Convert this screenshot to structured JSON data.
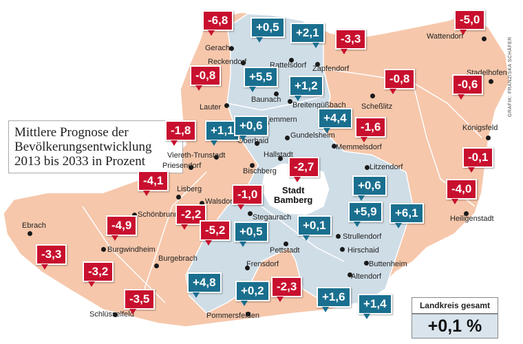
{
  "title_lines": [
    "Mittlere Prognose der",
    "Bevölkerungsentwicklung",
    "2013 bis 2033 in Prozent"
  ],
  "credit": "GRAFIK: FRANZISKA SCHÄFER",
  "city": [
    "Stadt",
    "Bamberg"
  ],
  "total_label": "Landkreis gesamt",
  "total_value": "+0,1 %",
  "colors": {
    "decline_region": "#f6c7ab",
    "growth_region": "#cfdde7",
    "badge_negative": "#c8102e",
    "badge_positive": "#1a6f8f"
  },
  "towns": [
    "Gerach",
    "Reckendorf",
    "Rattelsdorf",
    "Zapfendorf",
    "Wattendorf",
    "Stadelhofen",
    "Lauter",
    "Baunach",
    "Breitengüßbach",
    "Scheßlitz",
    "Kemmern",
    "Gundelsheim",
    "Memmelsdorf",
    "Königsfeld",
    "Oberhaid",
    "Hallstadt",
    "Viereth-Trunstadt",
    "Priesendorf",
    "Bischberg",
    "Litzendorf",
    "Lisberg",
    "Walsdorf",
    "Stegaurach",
    "Schönbrunn",
    "Heiligenstadt",
    "Strullendorf",
    "Ebrach",
    "Pettstadt",
    "Hirschaid",
    "Burgwindheim",
    "Burgebrach",
    "Frensdorf",
    "Buttenheim",
    "Altendorf",
    "Pommersfelden",
    "Schlüsselfeld"
  ],
  "values": [
    "-6,8",
    "+0,5",
    "+2,1",
    "-3,3",
    "-5,0",
    "-0,8",
    "+5,5",
    "+1,2",
    "-0,8",
    "-0,6",
    "+4,4",
    "-1,8",
    "+1,1",
    "+0,6",
    "-1,6",
    "-2,7",
    "-0,1",
    "+0,6",
    "-4,1",
    "-1,0",
    "-4,0",
    "-2,2",
    "-4,9",
    "+5,9",
    "+6,1",
    "-5,2",
    "+0,5",
    "+0,1",
    "-3,3",
    "-3,2",
    "+4,8",
    "-2,3",
    "+0,2",
    "+1,6",
    "+1,4",
    "-3,5"
  ]
}
